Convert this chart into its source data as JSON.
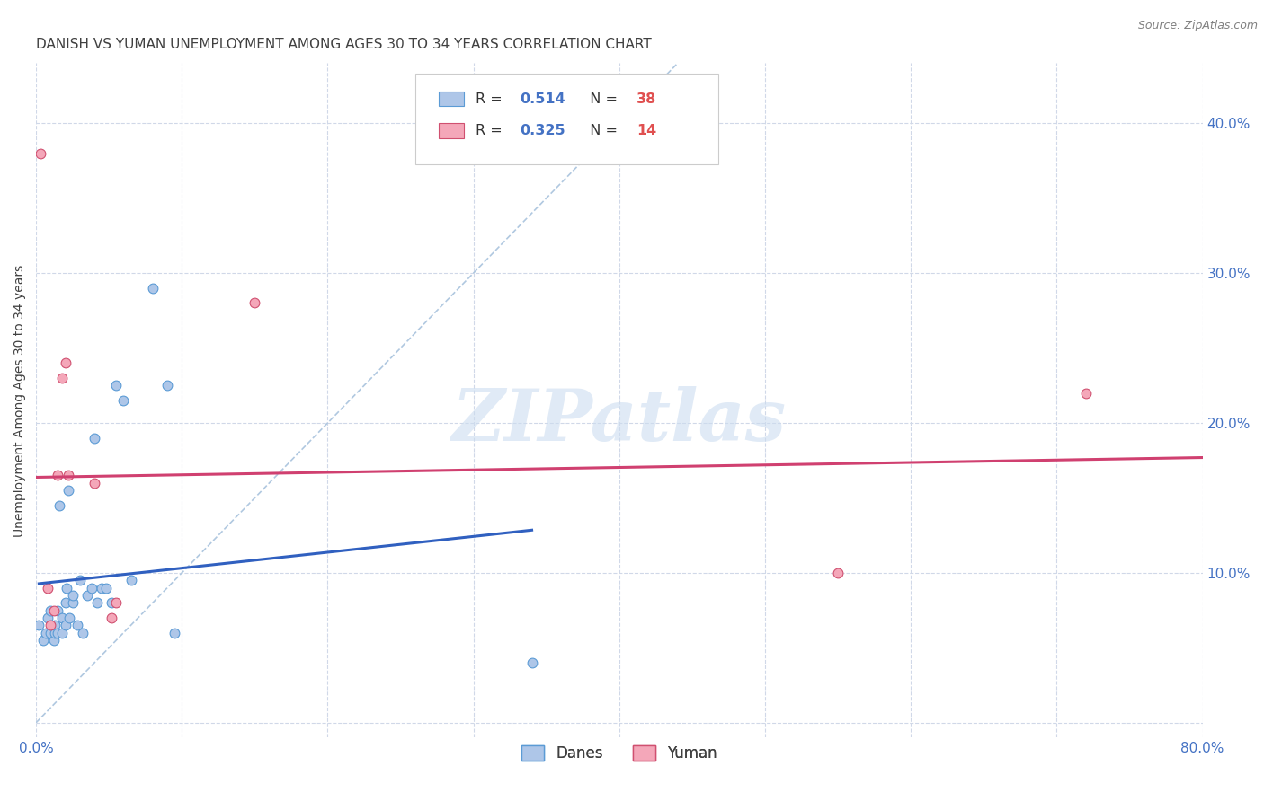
{
  "title": "DANISH VS YUMAN UNEMPLOYMENT AMONG AGES 30 TO 34 YEARS CORRELATION CHART",
  "source": "Source: ZipAtlas.com",
  "ylabel": "Unemployment Among Ages 30 to 34 years",
  "xlim": [
    0,
    0.8
  ],
  "ylim": [
    -0.01,
    0.44
  ],
  "xticks": [
    0.0,
    0.1,
    0.2,
    0.3,
    0.4,
    0.5,
    0.6,
    0.7,
    0.8
  ],
  "yticks": [
    0.0,
    0.1,
    0.2,
    0.3,
    0.4
  ],
  "danes_color": "#aec6e8",
  "danes_edge_color": "#5b9bd5",
  "yuman_color": "#f4a7b9",
  "yuman_edge_color": "#d05070",
  "danes_R": "0.514",
  "danes_N": "38",
  "yuman_R": "0.325",
  "yuman_N": "14",
  "danes_line_color": "#3060c0",
  "yuman_line_color": "#d04070",
  "diag_line_color": "#b0c8e0",
  "watermark": "ZIPatlas",
  "danes_x": [
    0.002,
    0.005,
    0.007,
    0.008,
    0.01,
    0.01,
    0.012,
    0.013,
    0.013,
    0.015,
    0.015,
    0.016,
    0.018,
    0.018,
    0.02,
    0.02,
    0.021,
    0.022,
    0.023,
    0.025,
    0.025,
    0.028,
    0.03,
    0.032,
    0.035,
    0.038,
    0.04,
    0.042,
    0.045,
    0.048,
    0.052,
    0.055,
    0.06,
    0.065,
    0.08,
    0.09,
    0.095,
    0.34
  ],
  "danes_y": [
    0.065,
    0.055,
    0.06,
    0.07,
    0.06,
    0.075,
    0.055,
    0.06,
    0.065,
    0.06,
    0.075,
    0.145,
    0.06,
    0.07,
    0.065,
    0.08,
    0.09,
    0.155,
    0.07,
    0.08,
    0.085,
    0.065,
    0.095,
    0.06,
    0.085,
    0.09,
    0.19,
    0.08,
    0.09,
    0.09,
    0.08,
    0.225,
    0.215,
    0.095,
    0.29,
    0.225,
    0.06,
    0.04
  ],
  "yuman_x": [
    0.003,
    0.008,
    0.01,
    0.012,
    0.015,
    0.018,
    0.02,
    0.022,
    0.04,
    0.052,
    0.055,
    0.15,
    0.55,
    0.72
  ],
  "yuman_y": [
    0.38,
    0.09,
    0.065,
    0.075,
    0.165,
    0.23,
    0.24,
    0.165,
    0.16,
    0.07,
    0.08,
    0.28,
    0.1,
    0.22
  ],
  "background_color": "#ffffff",
  "grid_color": "#d0d8e8",
  "title_color": "#404040",
  "tick_label_color": "#4472c4",
  "legend_R_color": "#4472c4",
  "legend_N_color": "#e05050",
  "marker_size": 60,
  "legend_box_color": "#f0f4ff",
  "legend_edge_color": "#cccccc"
}
